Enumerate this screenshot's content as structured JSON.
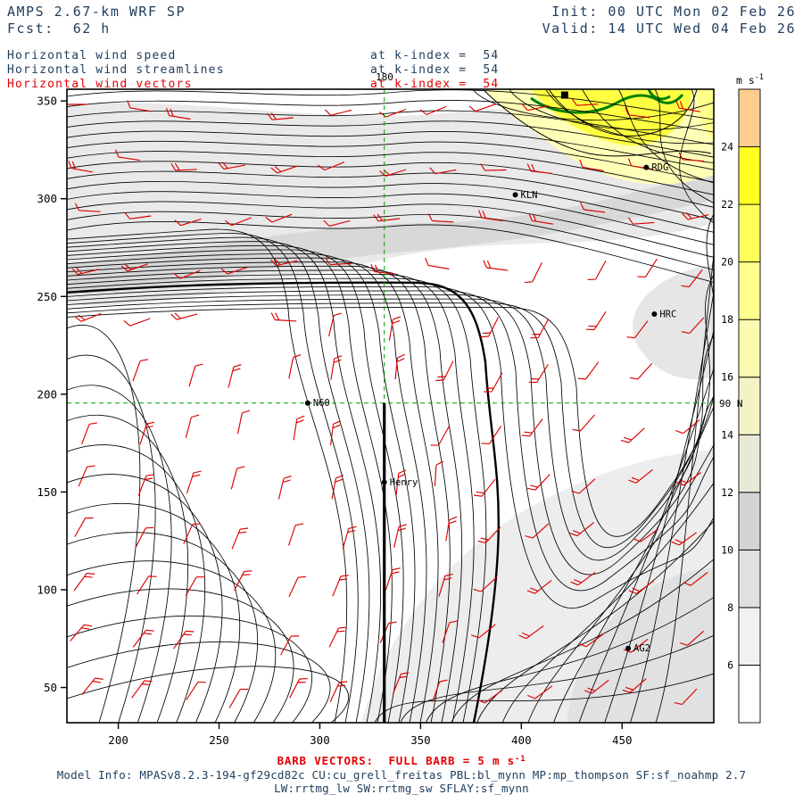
{
  "header": {
    "model_title": "AMPS 2.67-km WRF SP",
    "fcst_label": "Fcst:  62 h",
    "init_label": "Init: 00 UTC Mon 02 Feb 26",
    "valid_label": "Valid: 14 UTC Wed 04 Feb 26",
    "fields": [
      {
        "label": "Horizontal wind speed",
        "k_index": "at k-index =  54"
      },
      {
        "label": "Horizontal wind streamlines",
        "k_index": "at k-index =  54"
      },
      {
        "label": "Horizontal wind vectors",
        "k_index": "at k-index =  54"
      }
    ]
  },
  "footer": {
    "barb_legend_main": "BARB VECTORS:  FULL BARB = 5 m s",
    "barb_legend_sup": "-1",
    "model_info_line1": "Model Info: MPASv8.2.3-194-gf29cd82c CU:cu_grell_freitas PBL:bl_mynn MP:mp_thompson SF:sf_noahmp 2.7",
    "model_info_line2": "LW:rrtmg_lw SW:rrtmg_sw SFLAY:sf_mynn"
  },
  "chart_data": {
    "type": "heatmap",
    "description": "AMPS WRF map: horizontal wind speed shading (m/s), black streamlines and red wind barbs at model level k-index = 54; green dashed reference lines at the 180 meridian and 90 N parallel.",
    "k_index": 54,
    "x_ticks": [
      200,
      250,
      300,
      350,
      400,
      450
    ],
    "y_ticks": [
      50,
      100,
      150,
      200,
      250,
      300,
      350
    ],
    "x_range": [
      174.5,
      495.5
    ],
    "y_range": [
      32,
      356
    ],
    "grid_on": false,
    "colorbar": {
      "units_main": "m s",
      "units_sup": "-1",
      "boundaries": [
        6,
        8,
        10,
        12,
        14,
        16,
        18,
        20,
        22,
        24
      ],
      "colors": [
        "#ffffff",
        "#f1f1f1",
        "#e0e0e0",
        "#d4d4d4",
        "#e9e9d9",
        "#f3f3c6",
        "#fbfbb0",
        "#ffff8e",
        "#ffff5c",
        "#ffff20",
        "#ffcd8f"
      ]
    },
    "reference": {
      "meridian_x": 332,
      "parallel_y": 195.5,
      "meridian_label": "180",
      "parallel_label": "90 N"
    },
    "stations": [
      {
        "name": "RDG",
        "x": 462,
        "y": 316
      },
      {
        "name": "KLN",
        "x": 397,
        "y": 302
      },
      {
        "name": "HRC",
        "x": 466,
        "y": 241
      },
      {
        "name": "N60",
        "x": 294,
        "y": 195.5
      },
      {
        "name": "Henry",
        "x": 332,
        "y": 155
      },
      {
        "name": "AG2",
        "x": 453,
        "y": 70
      },
      {
        "name": "",
        "x": 421.5,
        "y": 353,
        "marker": "square"
      }
    ],
    "barb_info": "full barb = 5 m/s",
    "streamline_color": "#000000",
    "barb_color": "#dc0000"
  }
}
